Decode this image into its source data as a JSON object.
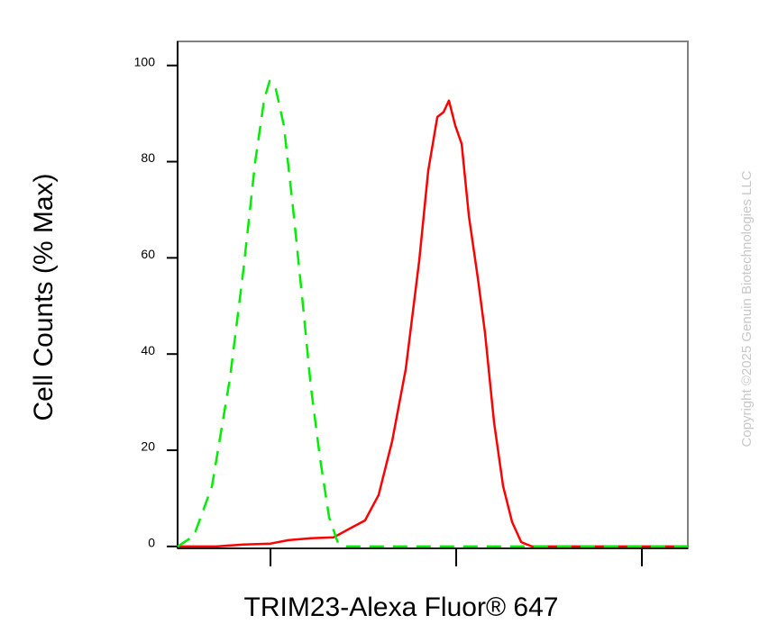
{
  "chart_data": {
    "type": "line",
    "x_label": "TRIM23-Alexa Fluor® 647",
    "y_label": "Cell Counts (% Max)",
    "watermark": "Copyright ©2025 Genuin Biotechnologies LLC",
    "xscale": "log",
    "xlim": [
      3.16,
      1768
    ],
    "xticks": [
      10,
      100,
      1000
    ],
    "ylim": [
      -0.4,
      105
    ],
    "yticks": [
      0,
      20,
      40,
      60,
      80,
      100
    ],
    "series": [
      {
        "color": "#ff0000",
        "dash": "solid",
        "x": [
          3.16,
          5.11,
          7.15,
          10,
          12.5,
          16.5,
          21.9,
          27.3,
          32.3,
          38.2,
          45.2,
          53.5,
          63.2,
          70.7,
          79.1,
          85.5,
          91.4,
          98.9,
          107,
          117,
          131,
          143,
          160,
          179,
          200,
          224,
          256,
          358,
          1768
        ],
        "values": [
          0,
          0,
          0.4,
          0.6,
          1.3,
          1.7,
          1.9,
          3.9,
          5.4,
          10.7,
          21.9,
          36.9,
          59.4,
          78.1,
          89.3,
          90.3,
          92.7,
          87.5,
          83.7,
          68.7,
          55.6,
          44.4,
          25.7,
          12.5,
          5.1,
          0.9,
          0,
          0,
          0
        ]
      },
      {
        "color": "#00ee00",
        "dash": "dashed",
        "x": [
          3.16,
          3.87,
          4.84,
          6.05,
          7.15,
          8.27,
          9.25,
          9.89,
          10.7,
          11.8,
          13.2,
          14.8,
          16.5,
          18.5,
          20.7,
          23.1,
          25.9,
          53.5,
          164,
          1768
        ],
        "values": [
          0,
          2.2,
          12.5,
          35,
          57.5,
          80,
          93,
          96.8,
          95,
          87.5,
          70.6,
          51.9,
          33.1,
          18.2,
          6,
          0.7,
          0,
          0,
          0,
          0
        ]
      }
    ]
  }
}
